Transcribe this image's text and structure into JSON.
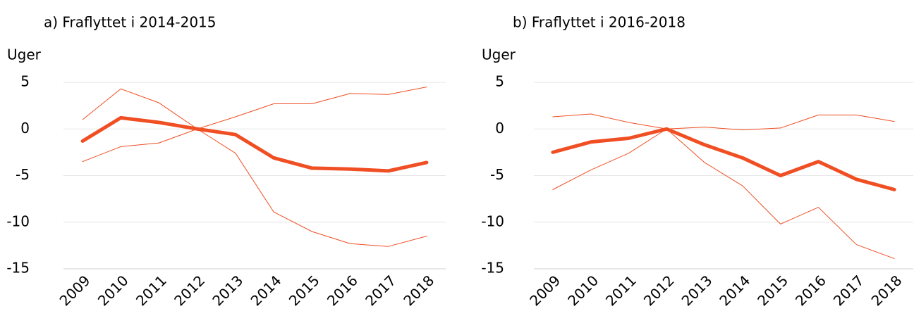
{
  "chart_data": [
    {
      "type": "line",
      "title": "a)  Fraflyttet i 2014-2015",
      "ylabel": "Uger",
      "categories": [
        "2009",
        "2010",
        "2011",
        "2012",
        "2013",
        "2014",
        "2015",
        "2016",
        "2017",
        "2018"
      ],
      "series": [
        {
          "color": "#f04e23",
          "linewidth": 5,
          "values": [
            -1.3,
            1.2,
            0.7,
            0,
            -0.6,
            -3.1,
            -4.2,
            -4.3,
            -4.5,
            -3.6
          ]
        },
        {
          "color": "#f04e23",
          "linewidth": 1,
          "values": [
            1.0,
            4.3,
            2.8,
            0,
            1.3,
            2.7,
            2.7,
            3.8,
            3.7,
            4.5
          ]
        },
        {
          "color": "#f04e23",
          "linewidth": 1,
          "values": [
            -3.5,
            -1.9,
            -1.5,
            0,
            -2.6,
            -8.9,
            -11.0,
            -12.3,
            -12.6,
            -11.5
          ]
        }
      ],
      "ylim": [
        -15,
        5
      ],
      "yticks": [
        5,
        0,
        -5,
        -10,
        -15
      ],
      "grid": true
    },
    {
      "type": "line",
      "title": "b)  Fraflyttet i 2016-2018",
      "ylabel": "Uger",
      "categories": [
        "2009",
        "2010",
        "2011",
        "2012",
        "2013",
        "2014",
        "2015",
        "2016",
        "2017",
        "2018"
      ],
      "series": [
        {
          "color": "#f04e23",
          "linewidth": 5,
          "values": [
            -2.5,
            -1.4,
            -1.0,
            0,
            -1.7,
            -3.1,
            -5.0,
            -3.5,
            -5.4,
            -6.5
          ]
        },
        {
          "color": "#f04e23",
          "linewidth": 1,
          "values": [
            1.3,
            1.6,
            0.7,
            0,
            0.2,
            -0.1,
            0.1,
            1.5,
            1.5,
            0.8
          ]
        },
        {
          "color": "#f04e23",
          "linewidth": 1,
          "values": [
            -6.5,
            -4.4,
            -2.6,
            0,
            -3.6,
            -6.1,
            -10.2,
            -8.4,
            -12.4,
            -13.9
          ]
        }
      ],
      "ylim": [
        -15,
        5
      ],
      "yticks": [
        5,
        0,
        -5,
        -10,
        -15
      ],
      "grid": true
    }
  ]
}
